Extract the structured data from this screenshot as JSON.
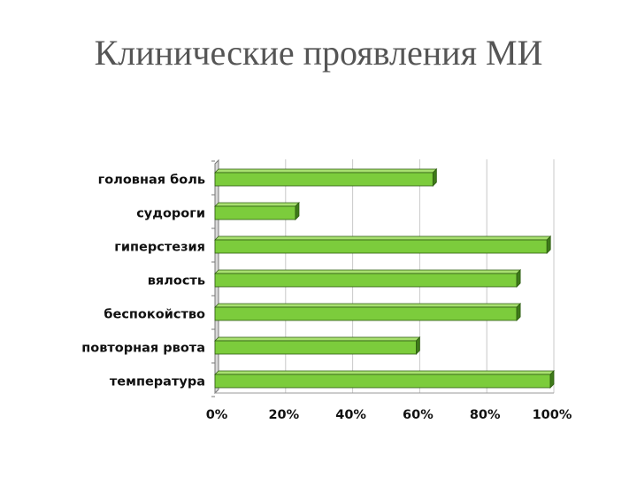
{
  "slide": {
    "title": "Клинические проявления МИ"
  },
  "chart_data": {
    "type": "bar",
    "orientation": "horizontal",
    "categories": [
      "головная боль",
      "судороги",
      "гиперстезия",
      "вялость",
      "беспокойство",
      "повторная рвота",
      "температура"
    ],
    "values": [
      65,
      24,
      99,
      90,
      90,
      60,
      100
    ],
    "unit": "%",
    "xlim": [
      0,
      100
    ],
    "xticks": [
      "0%",
      "20%",
      "40%",
      "60%",
      "80%",
      "100%"
    ],
    "grid": true,
    "legend": "none",
    "colors": {
      "bar": "#7ccc3c",
      "bar_side": "#3e7a1a",
      "bar_edge": "#2e5c10",
      "grid": "#c8c8c8"
    }
  }
}
